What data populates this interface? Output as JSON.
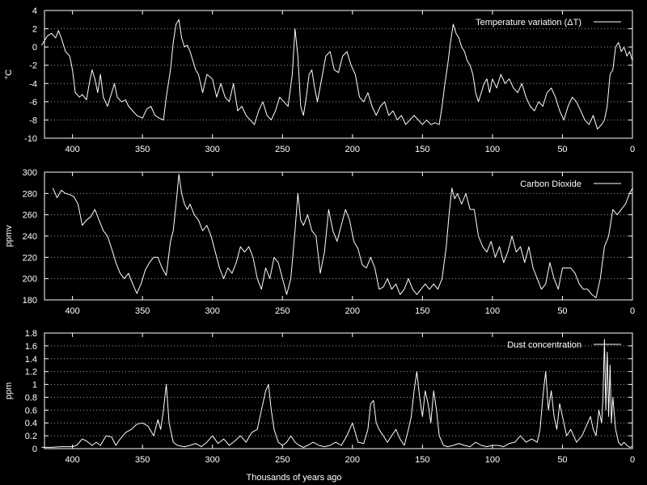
{
  "chart_data": [
    {
      "type": "line",
      "ylabel": "°C",
      "xlabel": "",
      "ylim": [
        -10,
        4
      ],
      "yticks": [
        4,
        2,
        0,
        -2,
        -4,
        -6,
        -8,
        -10
      ],
      "xlim": [
        420,
        0
      ],
      "xticks": [
        400,
        350,
        300,
        250,
        200,
        150,
        100,
        50,
        0
      ],
      "grid": true,
      "legend_position": "top-right",
      "series": [
        {
          "name": "Temperature variation (ΔT)",
          "color": "#ffffff",
          "x": [
            422,
            418,
            415,
            412,
            410,
            408,
            405,
            402,
            400,
            398,
            395,
            393,
            390,
            388,
            386,
            384,
            382,
            380,
            378,
            375,
            372,
            370,
            368,
            365,
            362,
            360,
            357,
            354,
            350,
            347,
            344,
            341,
            338,
            335,
            333,
            330,
            328,
            326,
            324,
            322,
            320,
            318,
            316,
            314,
            312,
            310,
            307,
            304,
            300,
            297,
            294,
            291,
            288,
            285,
            282,
            279,
            276,
            273,
            270,
            267,
            264,
            261,
            258,
            255,
            252,
            249,
            246,
            243,
            241,
            239,
            237,
            235,
            233,
            231,
            229,
            227,
            225,
            222,
            219,
            216,
            213,
            210,
            207,
            204,
            201,
            198,
            195,
            192,
            189,
            186,
            183,
            180,
            177,
            174,
            171,
            168,
            165,
            162,
            159,
            156,
            153,
            150,
            147,
            144,
            141,
            138,
            136,
            134,
            132,
            130,
            128,
            126,
            124,
            122,
            120,
            118,
            116,
            114,
            112,
            110,
            108,
            106,
            104,
            102,
            100,
            97,
            94,
            91,
            88,
            85,
            82,
            79,
            76,
            73,
            70,
            67,
            64,
            61,
            58,
            55,
            52,
            49,
            46,
            43,
            40,
            37,
            34,
            31,
            28,
            25,
            22,
            20,
            18,
            16,
            14,
            12,
            10,
            8,
            6,
            4,
            2,
            0
          ],
          "y": [
            0.2,
            1.2,
            1.5,
            1.0,
            1.8,
            1.0,
            -0.5,
            -1.0,
            -2.5,
            -5.0,
            -5.5,
            -5.2,
            -5.8,
            -4.0,
            -2.5,
            -3.5,
            -5.0,
            -3.0,
            -5.5,
            -6.5,
            -5.0,
            -4.0,
            -5.5,
            -6.0,
            -5.8,
            -6.5,
            -7.0,
            -7.5,
            -7.8,
            -6.8,
            -6.5,
            -7.5,
            -7.8,
            -8.0,
            -5.5,
            -2.5,
            0.5,
            2.5,
            3.0,
            1.0,
            0.0,
            0.2,
            -0.5,
            -1.5,
            -2.5,
            -3.0,
            -5.0,
            -3.0,
            -3.5,
            -5.5,
            -4.0,
            -5.5,
            -6.0,
            -4.0,
            -7.0,
            -6.5,
            -7.5,
            -8.0,
            -8.5,
            -7.0,
            -6.0,
            -7.5,
            -8.0,
            -7.0,
            -5.5,
            -6.0,
            -6.5,
            -3.0,
            2.0,
            -1.0,
            -6.5,
            -7.5,
            -5.5,
            -3.0,
            -2.5,
            -4.5,
            -6.0,
            -3.5,
            -1.0,
            -0.5,
            -2.5,
            -2.8,
            -1.0,
            -0.5,
            -2.0,
            -3.0,
            -5.5,
            -6.0,
            -5.0,
            -6.5,
            -7.5,
            -6.5,
            -6.0,
            -7.5,
            -7.0,
            -8.0,
            -7.5,
            -8.5,
            -8.0,
            -7.5,
            -8.0,
            -8.5,
            -8.0,
            -8.5,
            -8.3,
            -8.5,
            -6.5,
            -4.0,
            -2.0,
            0.5,
            2.5,
            1.5,
            1.0,
            0.0,
            -0.5,
            -1.5,
            -2.0,
            -3.0,
            -5.0,
            -6.0,
            -5.0,
            -4.0,
            -3.5,
            -5.0,
            -3.5,
            -4.5,
            -3.0,
            -4.0,
            -3.5,
            -4.5,
            -5.0,
            -4.0,
            -5.5,
            -6.5,
            -7.0,
            -6.0,
            -6.5,
            -5.0,
            -4.5,
            -5.5,
            -7.0,
            -8.0,
            -6.5,
            -5.5,
            -6.0,
            -7.0,
            -8.0,
            -8.5,
            -7.5,
            -9.0,
            -8.5,
            -8.0,
            -6.5,
            -3.0,
            -2.5,
            0.0,
            0.5,
            -0.5,
            0.0,
            -1.0,
            -0.5,
            -1.5
          ]
        }
      ]
    },
    {
      "type": "line",
      "ylabel": "ppmv",
      "xlabel": "",
      "ylim": [
        180,
        300
      ],
      "yticks": [
        300,
        280,
        260,
        240,
        220,
        200,
        180
      ],
      "xlim": [
        420,
        0
      ],
      "xticks": [
        400,
        350,
        300,
        250,
        200,
        150,
        100,
        50,
        0
      ],
      "grid": true,
      "legend_position": "top-right",
      "series": [
        {
          "name": "Carbon Dioxide",
          "color": "#ffffff",
          "x": [
            414,
            411,
            408,
            405,
            402,
            399,
            396,
            393,
            390,
            387,
            384,
            381,
            378,
            375,
            372,
            369,
            366,
            363,
            360,
            357,
            354,
            351,
            348,
            345,
            342,
            339,
            336,
            333,
            330,
            328,
            326,
            324,
            322,
            320,
            318,
            316,
            313,
            310,
            307,
            304,
            301,
            298,
            295,
            292,
            289,
            286,
            283,
            280,
            277,
            274,
            271,
            268,
            265,
            262,
            259,
            256,
            253,
            250,
            247,
            244,
            241,
            239,
            237,
            235,
            232,
            229,
            226,
            223,
            220,
            217,
            214,
            211,
            208,
            205,
            202,
            199,
            196,
            193,
            190,
            187,
            184,
            181,
            178,
            175,
            172,
            169,
            166,
            163,
            160,
            157,
            154,
            151,
            148,
            145,
            142,
            139,
            136,
            133,
            131,
            129,
            127,
            125,
            122,
            119,
            116,
            113,
            110,
            107,
            104,
            101,
            98,
            95,
            92,
            89,
            86,
            83,
            80,
            77,
            74,
            71,
            68,
            65,
            62,
            59,
            56,
            53,
            50,
            47,
            44,
            41,
            38,
            35,
            32,
            29,
            26,
            23,
            20,
            17,
            14,
            11,
            8,
            5,
            2,
            0
          ],
          "y": [
            285,
            276,
            283,
            280,
            279,
            277,
            270,
            250,
            255,
            258,
            265,
            255,
            245,
            240,
            228,
            215,
            205,
            200,
            205,
            195,
            186,
            195,
            208,
            215,
            220,
            220,
            210,
            203,
            235,
            245,
            270,
            298,
            280,
            270,
            265,
            270,
            260,
            255,
            245,
            250,
            240,
            225,
            210,
            200,
            210,
            205,
            215,
            230,
            225,
            230,
            220,
            200,
            190,
            210,
            200,
            220,
            215,
            200,
            185,
            200,
            245,
            280,
            255,
            250,
            260,
            245,
            240,
            205,
            225,
            265,
            245,
            235,
            250,
            265,
            255,
            235,
            228,
            213,
            210,
            220,
            210,
            190,
            192,
            200,
            190,
            195,
            185,
            190,
            200,
            190,
            185,
            190,
            195,
            190,
            195,
            190,
            200,
            230,
            260,
            285,
            275,
            280,
            270,
            280,
            265,
            265,
            240,
            230,
            225,
            235,
            220,
            230,
            215,
            225,
            240,
            225,
            230,
            215,
            230,
            210,
            200,
            190,
            195,
            215,
            200,
            190,
            210,
            210,
            210,
            205,
            195,
            190,
            190,
            185,
            182,
            200,
            230,
            240,
            265,
            260,
            265,
            270,
            280,
            285
          ]
        }
      ]
    },
    {
      "type": "line",
      "ylabel": "ppm",
      "xlabel": "Thousands of years ago",
      "ylim": [
        0,
        1.8
      ],
      "yticks": [
        1.8,
        1.6,
        1.4,
        1.2,
        1,
        0.8,
        0.6,
        0.4,
        0.2,
        0
      ],
      "xlim": [
        420,
        0
      ],
      "xticks": [
        400,
        350,
        300,
        250,
        200,
        150,
        100,
        50,
        0
      ],
      "grid": true,
      "legend_position": "top-right",
      "series": [
        {
          "name": "Dust concentration",
          "color": "#ffffff",
          "x": [
            422,
            415,
            408,
            400,
            397,
            393,
            390,
            386,
            383,
            380,
            376,
            372,
            369,
            366,
            362,
            358,
            354,
            350,
            346,
            342,
            339,
            337,
            335,
            333,
            331,
            328,
            325,
            320,
            316,
            312,
            308,
            304,
            300,
            296,
            292,
            288,
            284,
            280,
            276,
            272,
            268,
            265,
            262,
            260,
            258,
            256,
            253,
            250,
            247,
            244,
            241,
            238,
            235,
            232,
            228,
            224,
            220,
            216,
            212,
            208,
            204,
            200,
            196,
            192,
            189,
            187,
            185,
            183,
            181,
            178,
            175,
            172,
            169,
            166,
            163,
            160,
            158,
            156,
            154,
            152,
            150,
            148,
            146,
            144,
            142,
            140,
            138,
            135,
            132,
            128,
            124,
            120,
            116,
            112,
            108,
            104,
            100,
            96,
            92,
            88,
            84,
            80,
            76,
            72,
            68,
            66,
            64,
            62,
            60,
            58,
            56,
            54,
            52,
            50,
            47,
            44,
            40,
            36,
            32,
            30,
            28,
            26,
            24,
            22,
            21,
            20,
            19,
            18,
            17,
            16,
            15,
            14,
            12,
            10,
            8,
            6,
            4,
            2,
            0
          ],
          "y": [
            0.02,
            0.02,
            0.03,
            0.03,
            0.05,
            0.15,
            0.12,
            0.05,
            0.1,
            0.05,
            0.2,
            0.18,
            0.05,
            0.15,
            0.25,
            0.3,
            0.38,
            0.4,
            0.35,
            0.2,
            0.45,
            0.3,
            0.6,
            1.0,
            0.4,
            0.1,
            0.05,
            0.03,
            0.05,
            0.08,
            0.03,
            0.1,
            0.2,
            0.08,
            0.15,
            0.05,
            0.12,
            0.2,
            0.1,
            0.25,
            0.3,
            0.6,
            0.9,
            1.0,
            0.6,
            0.3,
            0.1,
            0.05,
            0.1,
            0.2,
            0.1,
            0.05,
            0.02,
            0.05,
            0.1,
            0.05,
            0.03,
            0.05,
            0.1,
            0.05,
            0.2,
            0.4,
            0.1,
            0.08,
            0.3,
            0.7,
            0.75,
            0.4,
            0.3,
            0.2,
            0.1,
            0.2,
            0.3,
            0.15,
            0.05,
            0.3,
            0.5,
            0.9,
            1.2,
            0.8,
            0.5,
            0.9,
            0.7,
            0.4,
            0.9,
            0.6,
            0.2,
            0.05,
            0.03,
            0.05,
            0.08,
            0.05,
            0.03,
            0.1,
            0.05,
            0.03,
            0.05,
            0.05,
            0.03,
            0.08,
            0.1,
            0.2,
            0.1,
            0.15,
            0.1,
            0.3,
            0.8,
            1.2,
            0.6,
            0.9,
            0.5,
            0.3,
            0.7,
            0.5,
            0.2,
            0.3,
            0.1,
            0.2,
            0.4,
            0.5,
            0.3,
            0.2,
            0.6,
            0.4,
            0.8,
            1.7,
            0.6,
            1.5,
            0.5,
            1.3,
            0.4,
            0.8,
            0.3,
            0.1,
            0.05,
            0.1,
            0.05,
            0.02,
            0.03
          ]
        }
      ]
    }
  ]
}
